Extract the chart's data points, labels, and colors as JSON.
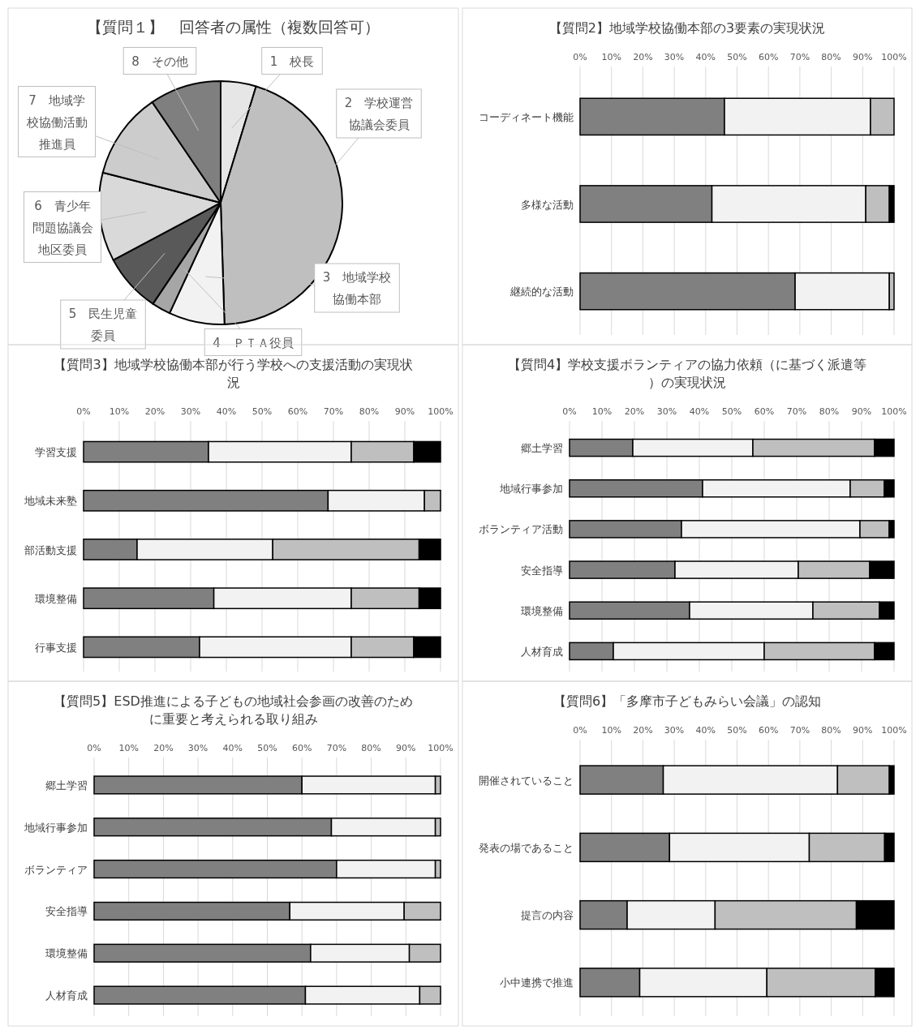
{
  "chart_data": [
    {
      "type": "pie",
      "title": "【質問１】　回答者の属性（複数回答可）",
      "categories": [
        "1　校長",
        "2　学校運営協議会委員",
        "3　地域学校協働本部",
        "4　ＰＴＡ役員",
        "5　民生児童委員",
        "6　青少年問題協議会地区委員",
        "7　地域学校協働活動推進員",
        "8　その他"
      ],
      "values": [
        4.7,
        44.8,
        7.4,
        2.5,
        7.8,
        11.8,
        11.5,
        9.5
      ],
      "colors": [
        "#e6e6e6",
        "#bfbfbf",
        "#f2f2f2",
        "#a6a6a6",
        "#595959",
        "#d9d9d9",
        "#cccccc",
        "#7f7f7f"
      ]
    },
    {
      "type": "bar",
      "orientation": "horizontal",
      "stacked": true,
      "title": "【質問2】地域学校協働本部の3要素の実現状況",
      "categories": [
        "コーディネート機能",
        "多様な活動",
        "継続的な活動"
      ],
      "series": [
        {
          "color": "#808080",
          "values": [
            46,
            42,
            68.5
          ]
        },
        {
          "color": "#f2f2f2",
          "values": [
            46.5,
            49,
            30
          ]
        },
        {
          "color": "#bfbfbf",
          "values": [
            7.5,
            7.5,
            1.5
          ]
        },
        {
          "color": "#000000",
          "values": [
            0,
            1.5,
            0
          ]
        }
      ],
      "xlim": [
        0,
        100
      ],
      "xticks": [
        {
          "value": 0,
          "label": "0%"
        },
        {
          "value": 10,
          "label": "10%"
        },
        {
          "value": 20,
          "label": "20%"
        },
        {
          "value": 30,
          "label": "30%"
        },
        {
          "value": 40,
          "label": "40%"
        },
        {
          "value": 50,
          "label": "50%"
        },
        {
          "value": 60,
          "label": "60%"
        },
        {
          "value": 70,
          "label": "70%"
        },
        {
          "value": 80,
          "label": "80%"
        },
        {
          "value": 90,
          "label": "90%"
        },
        {
          "value": 100,
          "label": "100%"
        }
      ],
      "grid": "x"
    },
    {
      "type": "bar",
      "orientation": "horizontal",
      "stacked": true,
      "title": "【質問3】地域学校協働本部が行う学校への支援活動の実現状況",
      "categories": [
        "学習支援",
        "地域未来塾",
        "部活動支援",
        "環境整備",
        "行事支援"
      ],
      "series": [
        {
          "color": "#808080",
          "values": [
            35,
            68.5,
            15,
            36.5,
            32.5
          ]
        },
        {
          "color": "#f2f2f2",
          "values": [
            40,
            27,
            38,
            38.5,
            42.5
          ]
        },
        {
          "color": "#bfbfbf",
          "values": [
            17.5,
            4.5,
            41,
            19,
            17.5
          ]
        },
        {
          "color": "#000000",
          "values": [
            7.5,
            0,
            6,
            6,
            7.5
          ]
        }
      ],
      "xlim": [
        0,
        100
      ],
      "xticks": [
        {
          "value": 0,
          "label": "0%"
        },
        {
          "value": 10,
          "label": "10%"
        },
        {
          "value": 20,
          "label": "20%"
        },
        {
          "value": 30,
          "label": "30%"
        },
        {
          "value": 40,
          "label": "40%"
        },
        {
          "value": 50,
          "label": "50%"
        },
        {
          "value": 60,
          "label": "60%"
        },
        {
          "value": 70,
          "label": "70%"
        },
        {
          "value": 80,
          "label": "80%"
        },
        {
          "value": 90,
          "label": "90%"
        },
        {
          "value": 100,
          "label": "100%"
        }
      ],
      "grid": "x"
    },
    {
      "type": "bar",
      "orientation": "horizontal",
      "stacked": true,
      "title": "【質問4】学校支援ボランティアの協力依頼（に基づく派遣等）の実現状況",
      "categories": [
        "郷土学習",
        "地域行事参加",
        "ボランティア活動",
        "安全指導",
        "環境整備",
        "人材育成"
      ],
      "series": [
        {
          "color": "#808080",
          "values": [
            19.5,
            41,
            34.5,
            32.5,
            37,
            13.5
          ]
        },
        {
          "color": "#f2f2f2",
          "values": [
            37,
            45.5,
            55,
            38,
            38,
            46.5
          ]
        },
        {
          "color": "#bfbfbf",
          "values": [
            37.5,
            10.5,
            9,
            22,
            20.5,
            34
          ]
        },
        {
          "color": "#000000",
          "values": [
            6,
            3,
            1.5,
            7.5,
            4.5,
            6
          ]
        }
      ],
      "xlim": [
        0,
        100
      ],
      "xticks": [
        {
          "value": 0,
          "label": "0%"
        },
        {
          "value": 10,
          "label": "10%"
        },
        {
          "value": 20,
          "label": "20%"
        },
        {
          "value": 30,
          "label": "30%"
        },
        {
          "value": 40,
          "label": "40%"
        },
        {
          "value": 50,
          "label": "50%"
        },
        {
          "value": 60,
          "label": "60%"
        },
        {
          "value": 70,
          "label": "70%"
        },
        {
          "value": 80,
          "label": "80%"
        },
        {
          "value": 90,
          "label": "90%"
        },
        {
          "value": 100,
          "label": "100%"
        }
      ],
      "grid": "x"
    },
    {
      "type": "bar",
      "orientation": "horizontal",
      "stacked": true,
      "title": "【質問5】ESD推進による子どもの地域社会参画の改善のために重要と考えられる取り組み",
      "categories": [
        "郷土学習",
        "地域行事参加",
        "ボランティア",
        "安全指導",
        "環境整備",
        "人材育成"
      ],
      "series": [
        {
          "color": "#808080",
          "values": [
            60,
            68.5,
            70,
            56.5,
            62.5,
            61
          ]
        },
        {
          "color": "#f2f2f2",
          "values": [
            38.5,
            30,
            28.5,
            33,
            28.5,
            33
          ]
        },
        {
          "color": "#bfbfbf",
          "values": [
            1.5,
            1.5,
            1.5,
            10.5,
            9,
            6
          ]
        }
      ],
      "xlim": [
        0,
        100
      ],
      "xticks": [
        {
          "value": 0,
          "label": "0%"
        },
        {
          "value": 10,
          "label": "10%"
        },
        {
          "value": 20,
          "label": "20%"
        },
        {
          "value": 30,
          "label": "30%"
        },
        {
          "value": 40,
          "label": "40%"
        },
        {
          "value": 50,
          "label": "50%"
        },
        {
          "value": 60,
          "label": "60%"
        },
        {
          "value": 70,
          "label": "70%"
        },
        {
          "value": 80,
          "label": "80%"
        },
        {
          "value": 90,
          "label": "90%"
        },
        {
          "value": 100,
          "label": "100%"
        }
      ],
      "grid": "x"
    },
    {
      "type": "bar",
      "orientation": "horizontal",
      "stacked": true,
      "title": "【質問6】「多摩市子どもみらい会議」の認知",
      "categories": [
        "開催されていること",
        "発表の場であること",
        "提言の内容",
        "小中連携で推進"
      ],
      "series": [
        {
          "color": "#808080",
          "values": [
            26.5,
            28.5,
            15,
            19
          ]
        },
        {
          "color": "#f2f2f2",
          "values": [
            55.5,
            44.5,
            28,
            40.5
          ]
        },
        {
          "color": "#bfbfbf",
          "values": [
            16.5,
            24,
            45,
            34.5
          ]
        },
        {
          "color": "#000000",
          "values": [
            1.5,
            3,
            12,
            6
          ]
        }
      ],
      "xlim": [
        0,
        100
      ],
      "xticks": [
        {
          "value": 0,
          "label": "0%"
        },
        {
          "value": 10,
          "label": "10%"
        },
        {
          "value": 20,
          "label": "20%"
        },
        {
          "value": 30,
          "label": "30%"
        },
        {
          "value": 40,
          "label": "40%"
        },
        {
          "value": 50,
          "label": "50%"
        },
        {
          "value": 60,
          "label": "60%"
        },
        {
          "value": 70,
          "label": "70%"
        },
        {
          "value": 80,
          "label": "80%"
        },
        {
          "value": 90,
          "label": "90%"
        },
        {
          "value": 100,
          "label": "100%"
        }
      ],
      "grid": "x"
    }
  ]
}
